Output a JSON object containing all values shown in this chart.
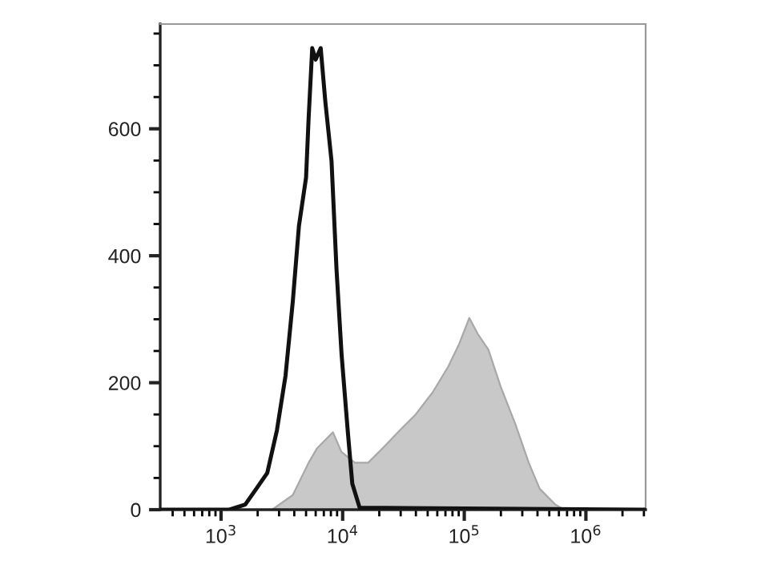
{
  "chart_data": {
    "type": "line",
    "xlim": [
      316,
      3100000
    ],
    "ylim": [
      0,
      765
    ],
    "log": "x",
    "xticks": [
      {
        "value": 1000,
        "label": "10$^{3}$"
      },
      {
        "value": 10000,
        "label": "10$^{4}$"
      },
      {
        "value": 100000,
        "label": "10$^{5}$"
      },
      {
        "value": 1000000,
        "label": "10$^{6}$"
      }
    ],
    "yticks": [
      0,
      200,
      400,
      600
    ],
    "grid": false,
    "legend": false,
    "series": [
      {
        "type": "area",
        "color": "#c8c8c8",
        "x": [
          2630,
          3890,
          5250,
          6170,
          8320,
          9770,
          12600,
          16200,
          21900,
          29500,
          39800,
          55000,
          74100,
          91200,
          110000,
          129000,
          158000,
          200000,
          263000,
          339000,
          417000,
          562000,
          661000
        ],
        "values": [
          0,
          23,
          74,
          97,
          122,
          91,
          74,
          74,
          99,
          125,
          150,
          185,
          226,
          262,
          302,
          277,
          252,
          193,
          135,
          74,
          33,
          8,
          0
        ]
      },
      {
        "color": "#111111",
        "x": [
          320,
          1170,
          1580,
          1950,
          2400,
          2880,
          3390,
          3890,
          4370,
          5000,
          5250,
          5620,
          6000,
          6600,
          7200,
          8100,
          8900,
          9800,
          11000,
          12000,
          13800,
          3000000
        ],
        "values": [
          0,
          0,
          8,
          33,
          58,
          125,
          211,
          328,
          447,
          523,
          617,
          727,
          709,
          727,
          643,
          549,
          379,
          244,
          125,
          41,
          3,
          0
        ]
      }
    ]
  }
}
